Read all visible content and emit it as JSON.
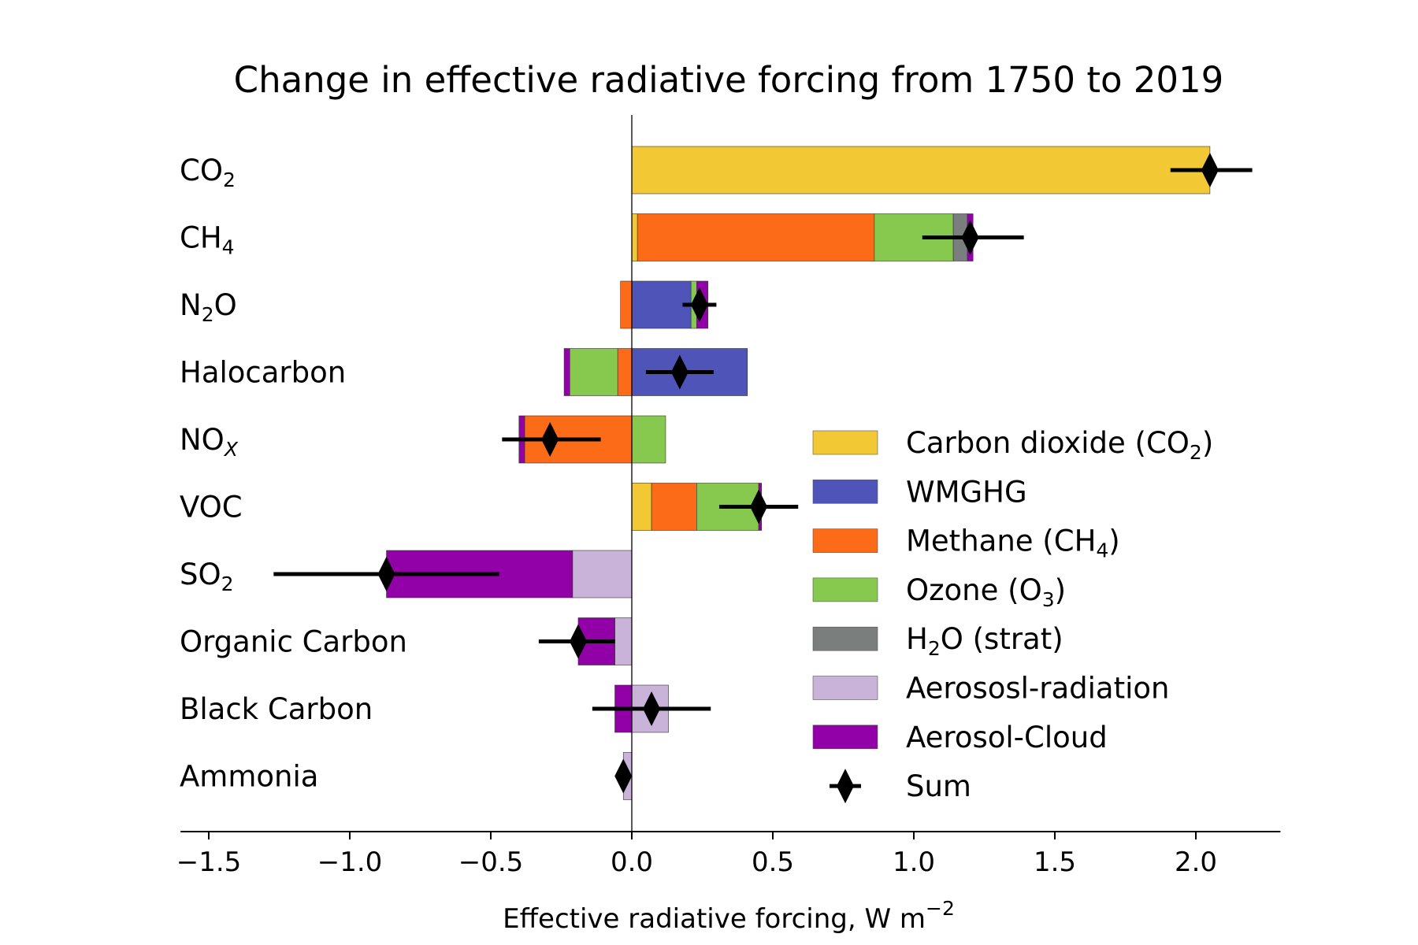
{
  "chart_data": {
    "type": "bar",
    "orientation": "horizontal",
    "stacked": true,
    "title": "Change in effective radiative forcing from  1750 to 2019",
    "xlabel": "Effective radiative forcing, W m",
    "xlabel_sup": "−2",
    "xlim": [
      -1.6,
      2.3
    ],
    "xticks": [
      -1.5,
      -1.0,
      -0.5,
      0.0,
      0.5,
      1.0,
      1.5,
      2.0
    ],
    "xtick_labels": [
      "−1.5",
      "−1.0",
      "−0.5",
      "0.0",
      "0.5",
      "1.0",
      "1.5",
      "2.0"
    ],
    "categories": [
      {
        "base": "CO",
        "sub": "2",
        "tail": "",
        "italic_sub": false
      },
      {
        "base": "CH",
        "sub": "4",
        "tail": "",
        "italic_sub": false
      },
      {
        "base": "N",
        "sub": "2",
        "tail": "O",
        "italic_sub": false
      },
      {
        "base": "Halocarbon",
        "sub": "",
        "tail": "",
        "italic_sub": false
      },
      {
        "base": "NO",
        "sub": "X",
        "tail": "",
        "italic_sub": true
      },
      {
        "base": "VOC",
        "sub": "",
        "tail": "",
        "italic_sub": false
      },
      {
        "base": "SO",
        "sub": "2",
        "tail": "",
        "italic_sub": false
      },
      {
        "base": "Organic Carbon",
        "sub": "",
        "tail": "",
        "italic_sub": false
      },
      {
        "base": "Black Carbon",
        "sub": "",
        "tail": "",
        "italic_sub": false
      },
      {
        "base": "Ammonia",
        "sub": "",
        "tail": "",
        "italic_sub": false
      }
    ],
    "series": [
      {
        "name": "Carbon dioxide (CO",
        "name_sub": "2",
        "name_tail": ")",
        "color": "#f2c935",
        "values": [
          2.05,
          0.02,
          0.0,
          0.0,
          0.0,
          0.07,
          0.0,
          0.0,
          0.0,
          0.0
        ]
      },
      {
        "name": "WMGHG",
        "name_sub": "",
        "name_tail": "",
        "color": "#4f55b8",
        "values": [
          0.0,
          0.0,
          0.21,
          0.41,
          0.0,
          0.0,
          0.0,
          0.0,
          0.0,
          0.0
        ]
      },
      {
        "name": "Methane (CH",
        "name_sub": "4",
        "name_tail": ")",
        "color": "#fc6b17",
        "values": [
          0.0,
          0.84,
          -0.04,
          -0.05,
          -0.38,
          0.16,
          0.0,
          0.0,
          0.0,
          0.0
        ]
      },
      {
        "name": "Ozone (O",
        "name_sub": "3",
        "name_tail": ")",
        "color": "#87c94e",
        "values": [
          0.0,
          0.28,
          0.02,
          -0.17,
          0.12,
          0.22,
          0.0,
          0.0,
          0.0,
          0.0
        ]
      },
      {
        "name": "H",
        "name_sub": "2",
        "name_tail": "O (strat)",
        "color": "#7a7f7d",
        "values": [
          0.0,
          0.05,
          0.0,
          0.0,
          0.0,
          0.0,
          0.0,
          0.0,
          0.0,
          0.0
        ]
      },
      {
        "name": "Aerososl-radiation",
        "name_sub": "",
        "name_tail": "",
        "color": "#c9b3d9",
        "values": [
          0.0,
          0.0,
          0.0,
          0.0,
          0.0,
          0.0,
          -0.21,
          -0.06,
          0.13,
          -0.03
        ]
      },
      {
        "name": "Aerosol-Cloud",
        "name_sub": "",
        "name_tail": "",
        "color": "#9201a8",
        "values": [
          0.0,
          0.02,
          0.04,
          -0.02,
          -0.02,
          0.01,
          -0.66,
          -0.13,
          -0.06,
          0.0
        ]
      }
    ],
    "sum": {
      "name": "Sum",
      "values": [
        2.05,
        1.2,
        0.24,
        0.17,
        -0.29,
        0.45,
        -0.87,
        -0.19,
        0.07,
        -0.03
      ],
      "errors_low": [
        1.91,
        1.03,
        0.18,
        0.05,
        -0.46,
        0.31,
        -1.27,
        -0.33,
        -0.14,
        -0.03
      ],
      "errors_high": [
        2.2,
        1.39,
        0.3,
        0.29,
        -0.11,
        0.59,
        -0.47,
        -0.06,
        0.28,
        -0.03
      ]
    },
    "grid": false,
    "legend_position": "right"
  }
}
